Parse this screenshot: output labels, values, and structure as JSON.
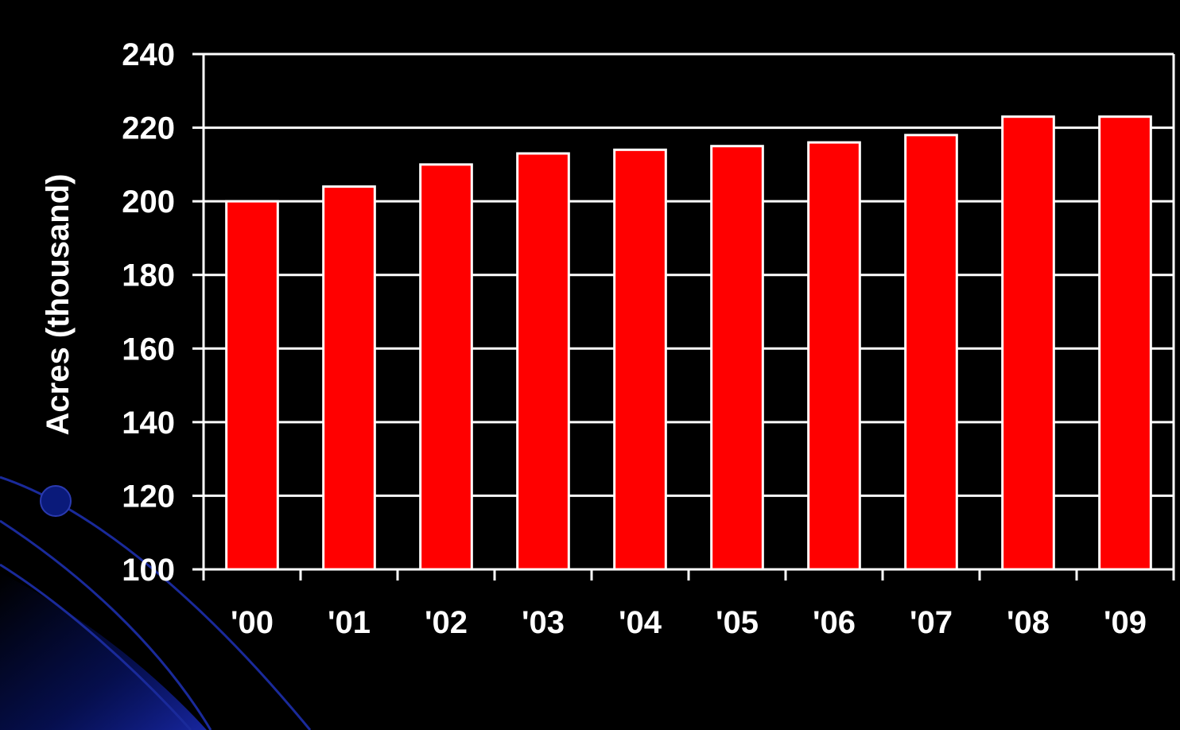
{
  "colors": {
    "background": "#000000",
    "bar_fill": "#ff0000",
    "bar_outline": "#ffffff",
    "grid": "#ffffff",
    "text": "#ffffff",
    "decoration_lines": "#1a2a9a",
    "bullet_dot": "#0a1a7a"
  },
  "decoration": {
    "bullet-icon": "bullet-dot-icon"
  },
  "chart_data": {
    "type": "bar",
    "categories": [
      "'00",
      "'01",
      "'02",
      "'03",
      "'04",
      "'05",
      "'06",
      "'07",
      "'08",
      "'09"
    ],
    "values": [
      200,
      204,
      210,
      213,
      214,
      215,
      216,
      218,
      223,
      223
    ],
    "title": "",
    "xlabel": "",
    "ylabel": "Acres (thousand)",
    "ylim": [
      100,
      240
    ],
    "yticks": [
      100,
      120,
      140,
      160,
      180,
      200,
      220,
      240
    ],
    "grid": true,
    "legend": "none"
  }
}
